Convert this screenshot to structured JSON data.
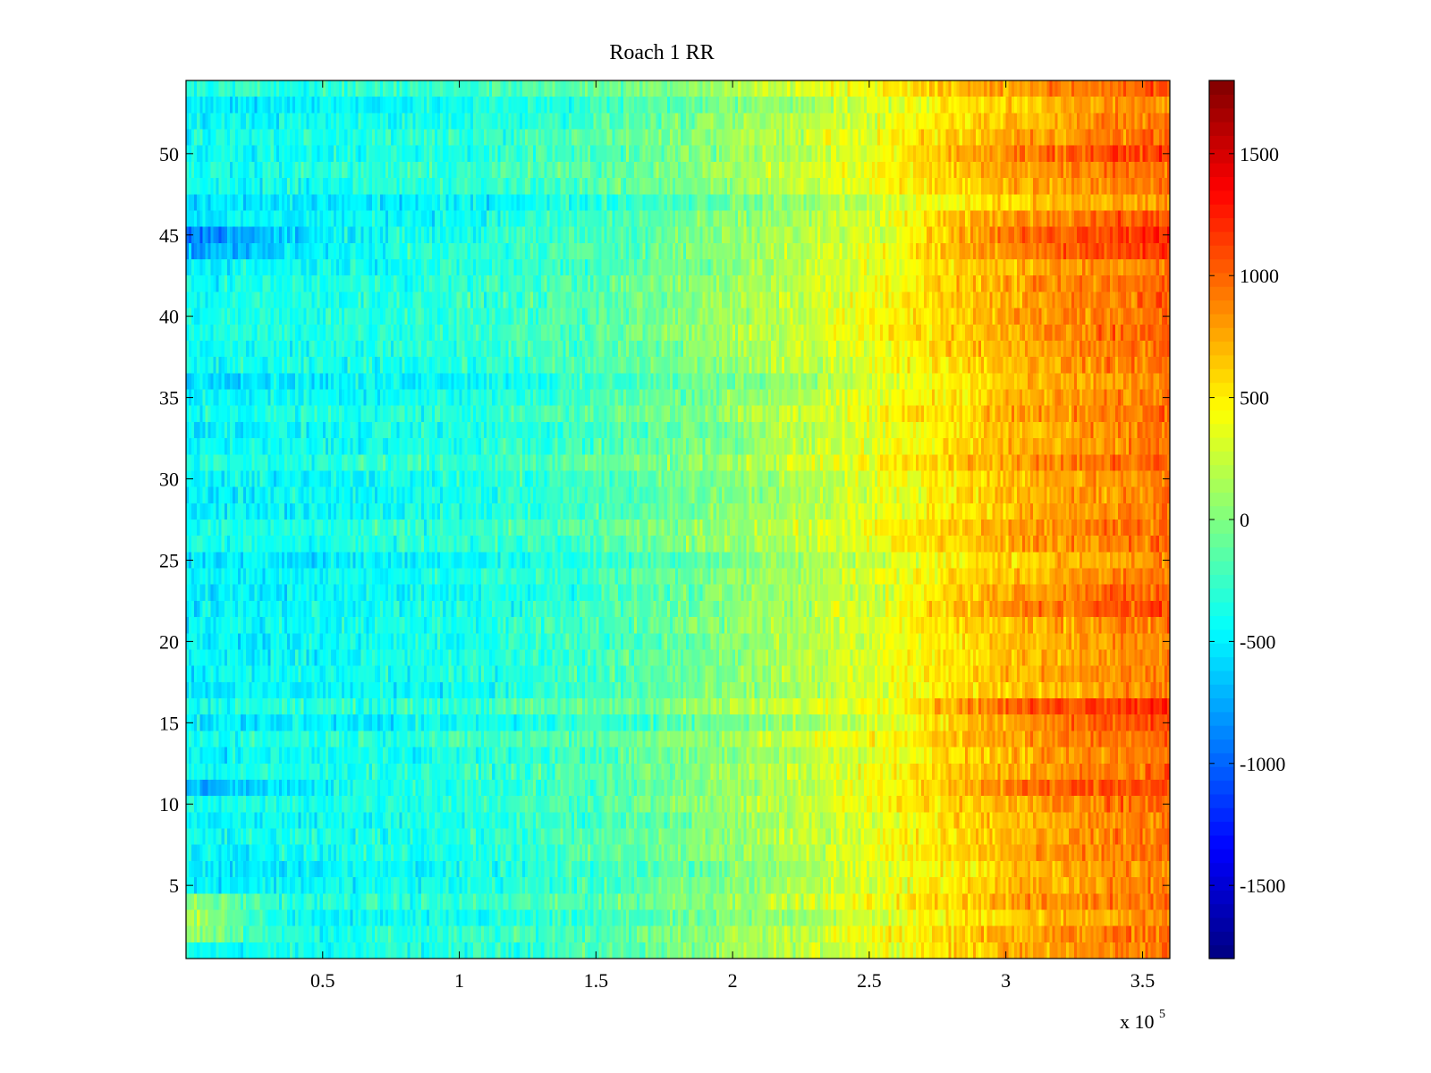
{
  "chart_data": {
    "type": "heatmap",
    "title": "Roach 1 RR",
    "xlabel": "",
    "ylabel": "",
    "x_exponent_label": "x 10",
    "x_exponent_power": "5",
    "xlim": [
      0,
      360000
    ],
    "ylim": [
      0.5,
      54.5
    ],
    "rows": 54,
    "x_ticks": [
      {
        "value": 50000,
        "label": "0.5"
      },
      {
        "value": 100000,
        "label": "1"
      },
      {
        "value": 150000,
        "label": "1.5"
      },
      {
        "value": 200000,
        "label": "2"
      },
      {
        "value": 250000,
        "label": "2.5"
      },
      {
        "value": 300000,
        "label": "3"
      },
      {
        "value": 350000,
        "label": "3.5"
      }
    ],
    "y_ticks": [
      {
        "value": 5,
        "label": "5"
      },
      {
        "value": 10,
        "label": "10"
      },
      {
        "value": 15,
        "label": "15"
      },
      {
        "value": 20,
        "label": "20"
      },
      {
        "value": 25,
        "label": "25"
      },
      {
        "value": 30,
        "label": "30"
      },
      {
        "value": 35,
        "label": "35"
      },
      {
        "value": 40,
        "label": "40"
      },
      {
        "value": 45,
        "label": "45"
      },
      {
        "value": 50,
        "label": "50"
      }
    ],
    "colorbar": {
      "colormap": "jet",
      "clim": [
        -1800,
        1800
      ],
      "ticks": [
        {
          "value": 1500,
          "label": "1500"
        },
        {
          "value": 1000,
          "label": "1000"
        },
        {
          "value": 500,
          "label": "500"
        },
        {
          "value": 0,
          "label": "0"
        },
        {
          "value": -500,
          "label": "-500"
        },
        {
          "value": -1000,
          "label": "-1000"
        },
        {
          "value": -1500,
          "label": "-1500"
        }
      ]
    },
    "trend": {
      "description_points_x": [
        0,
        50000,
        100000,
        150000,
        200000,
        250000,
        300000,
        360000
      ],
      "typical_value": [
        -450,
        -400,
        -350,
        -200,
        50,
        350,
        700,
        950
      ]
    },
    "hot_rows": [
      {
        "row": 45,
        "peak": 1250
      },
      {
        "row": 44,
        "peak": 1150
      },
      {
        "row": 46,
        "peak": 1050
      },
      {
        "row": 50,
        "peak": 1150
      },
      {
        "row": 16,
        "peak": 1250
      },
      {
        "row": 15,
        "peak": 1100
      },
      {
        "row": 11,
        "peak": 1150
      },
      {
        "row": 22,
        "peak": 1100
      },
      {
        "row": 23,
        "peak": 1000
      }
    ],
    "cool_rows": [
      {
        "row": 45,
        "start": -900
      },
      {
        "row": 44,
        "start": -800
      },
      {
        "row": 11,
        "start": -750
      }
    ],
    "warm_rows_low": [
      {
        "row": 2,
        "start": 100
      },
      {
        "row": 3,
        "start": 150
      },
      {
        "row": 4,
        "start": 50
      }
    ],
    "grid": false,
    "colorbar_position": "right"
  }
}
